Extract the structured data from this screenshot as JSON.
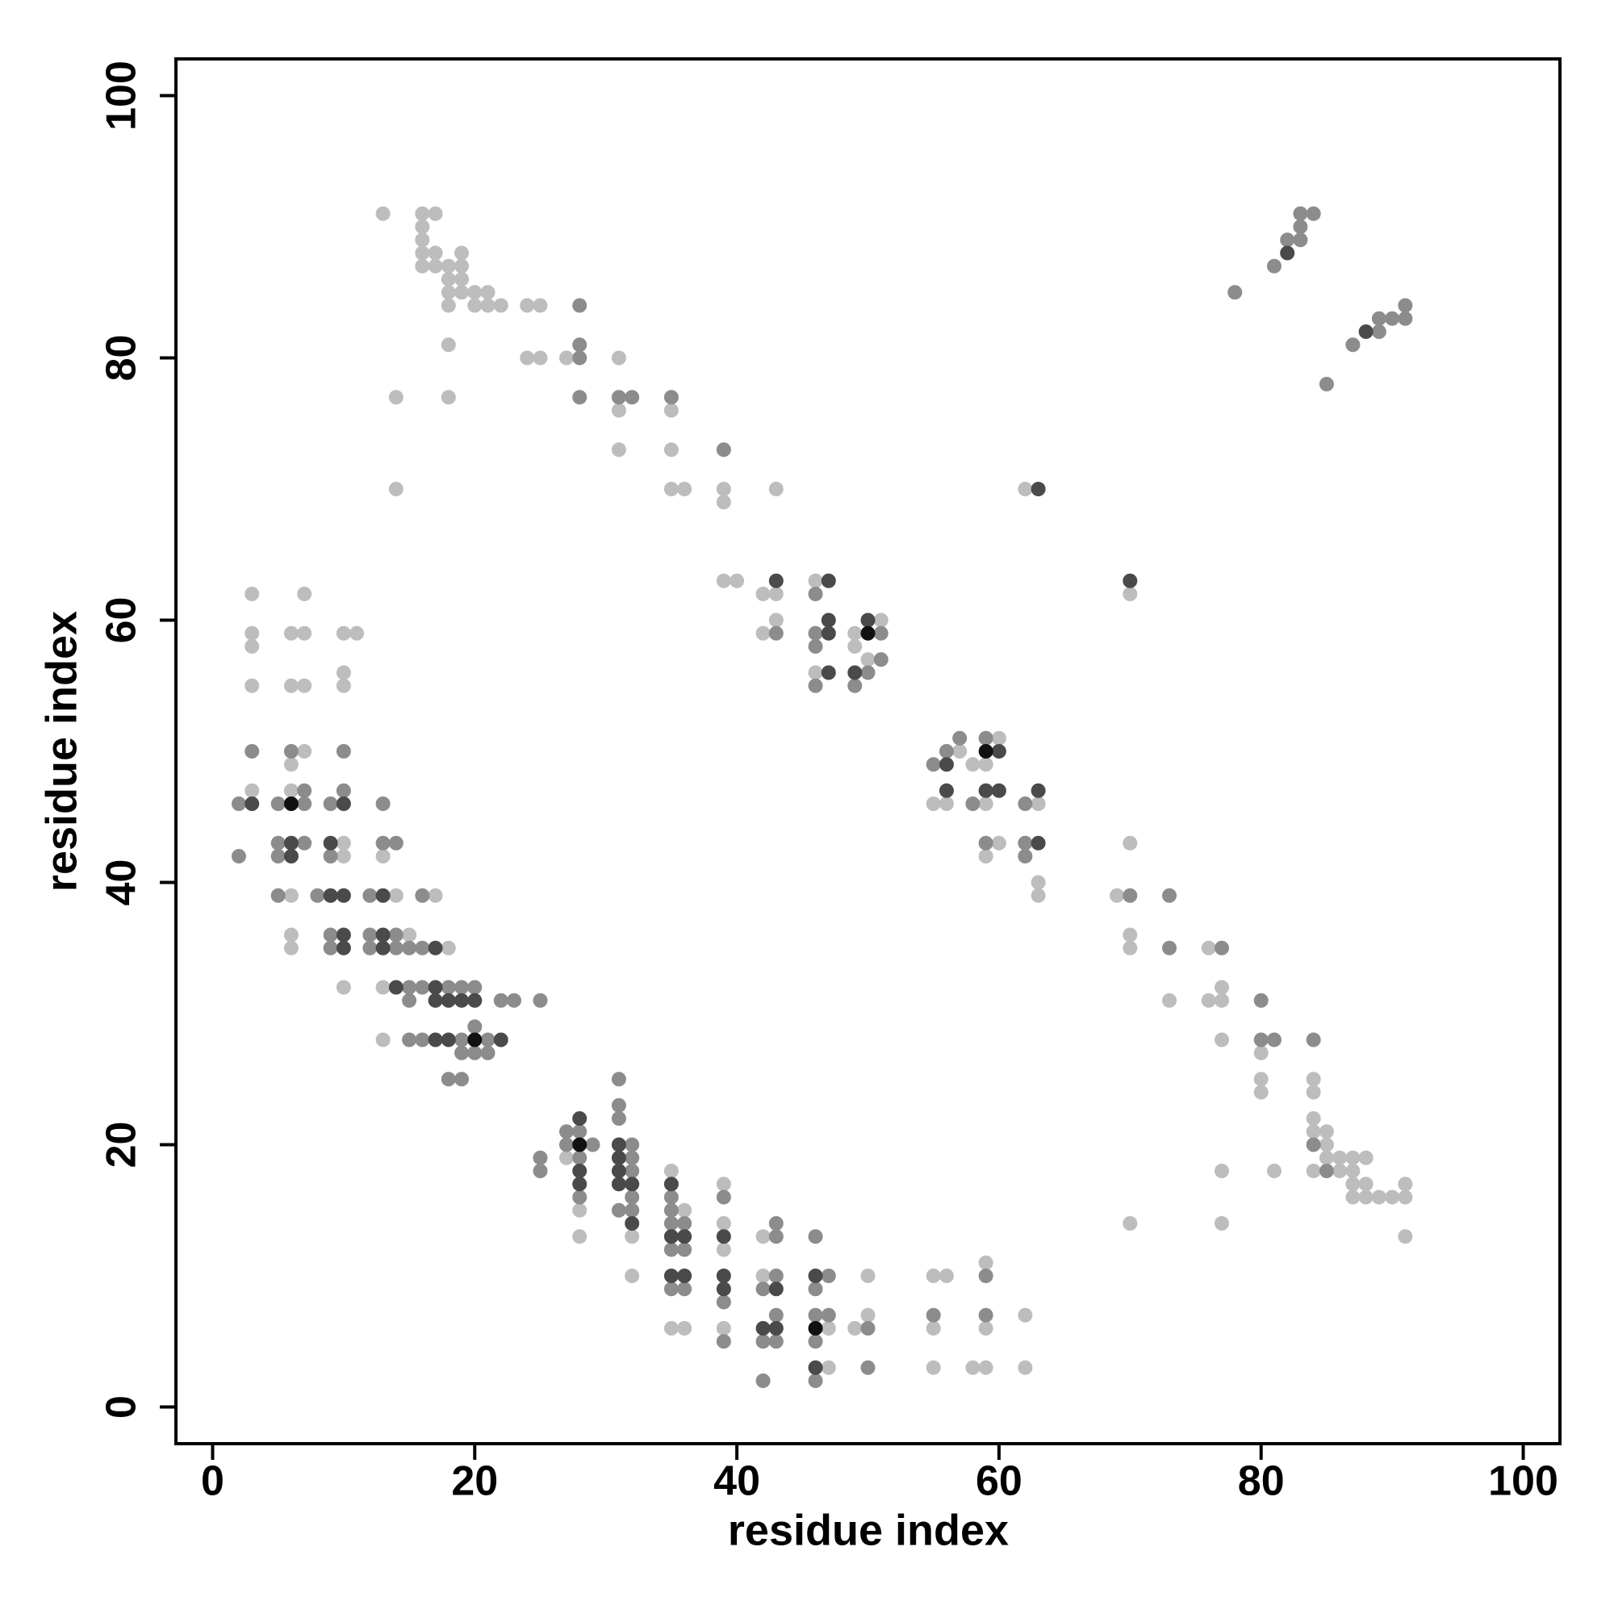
{
  "chart_data": {
    "type": "scatter",
    "xlabel": "residue index",
    "ylabel": "residue index",
    "xlim": [
      -2.8,
      102.8
    ],
    "ylim": [
      -2.8,
      102.8
    ],
    "xticks": [
      0,
      20,
      40,
      60,
      80,
      100
    ],
    "yticks": [
      0,
      20,
      40,
      60,
      80,
      100
    ],
    "series": [
      {
        "color": "#bdbdbd",
        "x": [
          16,
          17,
          13,
          16,
          16,
          16,
          17,
          16,
          17,
          18,
          19,
          19,
          18,
          19,
          18,
          19,
          20,
          21,
          18,
          20,
          21,
          22,
          24,
          25,
          18,
          14,
          18,
          14,
          24,
          25,
          27,
          31,
          31,
          31,
          35,
          35,
          35,
          36,
          39,
          39,
          43,
          39,
          40,
          42,
          43,
          43,
          42,
          46,
          46,
          49,
          51,
          49,
          50,
          62,
          70,
          57,
          58,
          60,
          59,
          55,
          56,
          59,
          63,
          60,
          59,
          63,
          63,
          69,
          70,
          70,
          70,
          76,
          73,
          76,
          77,
          77,
          77,
          80,
          80,
          80,
          84,
          84,
          84,
          84,
          85,
          85,
          85,
          86,
          87,
          88,
          84,
          86,
          87,
          87,
          88,
          91,
          87,
          88,
          89,
          90,
          91,
          91,
          77,
          81,
          70,
          77,
          3,
          7,
          3,
          6,
          7,
          10,
          11,
          3,
          10,
          3,
          6,
          7,
          10,
          7,
          6,
          3,
          6,
          10,
          10,
          13,
          6,
          14,
          17,
          6,
          6,
          15,
          18,
          10,
          13,
          13,
          27,
          28,
          28,
          32,
          32,
          35,
          36,
          35,
          36,
          39,
          39,
          39,
          39,
          42,
          42,
          47,
          47,
          50,
          50,
          49,
          55,
          56,
          55,
          55,
          59,
          59,
          58,
          59,
          62,
          62
        ],
        "y": [
          91,
          91,
          91,
          90,
          89,
          88,
          88,
          87,
          87,
          87,
          88,
          87,
          86,
          86,
          85,
          85,
          85,
          85,
          84,
          84,
          84,
          84,
          84,
          84,
          81,
          77,
          77,
          70,
          80,
          80,
          80,
          80,
          76,
          73,
          76,
          73,
          70,
          70,
          70,
          69,
          70,
          63,
          63,
          62,
          62,
          60,
          59,
          63,
          56,
          59,
          60,
          58,
          57,
          70,
          62,
          50,
          49,
          51,
          49,
          46,
          46,
          46,
          46,
          43,
          42,
          40,
          39,
          39,
          43,
          36,
          35,
          35,
          31,
          31,
          31,
          32,
          28,
          27,
          25,
          24,
          25,
          24,
          22,
          21,
          21,
          20,
          19,
          19,
          19,
          19,
          18,
          18,
          18,
          17,
          17,
          17,
          16,
          16,
          16,
          16,
          16,
          13,
          18,
          18,
          14,
          14,
          62,
          62,
          59,
          59,
          59,
          59,
          59,
          58,
          56,
          55,
          55,
          55,
          55,
          50,
          49,
          47,
          47,
          43,
          42,
          42,
          39,
          39,
          39,
          36,
          35,
          36,
          35,
          32,
          32,
          28,
          19,
          15,
          13,
          13,
          10,
          18,
          15,
          6,
          6,
          17,
          14,
          12,
          6,
          13,
          10,
          6,
          3,
          10,
          7,
          6,
          10,
          10,
          6,
          3,
          11,
          6,
          3,
          3,
          7,
          3
        ]
      },
      {
        "color": "#8c8c8c",
        "x": [
          28,
          28,
          28,
          28,
          31,
          32,
          35,
          39,
          43,
          46,
          46,
          46,
          51,
          50,
          49,
          46,
          51,
          55,
          56,
          57,
          59,
          58,
          62,
          59,
          62,
          62,
          70,
          73,
          73,
          77,
          80,
          80,
          81,
          84,
          84,
          85,
          78,
          81,
          82,
          83,
          83,
          83,
          84,
          85,
          87,
          89,
          89,
          90,
          91,
          91,
          3,
          6,
          10,
          7,
          10,
          2,
          5,
          7,
          9,
          13,
          2,
          5,
          7,
          5,
          9,
          13,
          14,
          5,
          8,
          12,
          16,
          9,
          9,
          12,
          14,
          12,
          14,
          15,
          16,
          15,
          16,
          18,
          19,
          20,
          15,
          22,
          23,
          25,
          15,
          16,
          19,
          21,
          20,
          19,
          20,
          21,
          18,
          19,
          25,
          25,
          27,
          28,
          27,
          29,
          28,
          28,
          31,
          31,
          31,
          32,
          32,
          32,
          32,
          31,
          32,
          35,
          35,
          35,
          36,
          35,
          36,
          35,
          36,
          39,
          39,
          39,
          43,
          43,
          43,
          42,
          43,
          42,
          43,
          42,
          46,
          47,
          46,
          46,
          47,
          46,
          46,
          50,
          50,
          55,
          59,
          59
        ],
        "y": [
          84,
          81,
          80,
          77,
          77,
          77,
          77,
          73,
          59,
          62,
          59,
          58,
          59,
          56,
          55,
          55,
          57,
          49,
          50,
          51,
          51,
          46,
          46,
          43,
          43,
          42,
          39,
          39,
          35,
          35,
          31,
          28,
          28,
          28,
          20,
          18,
          85,
          87,
          89,
          89,
          90,
          91,
          91,
          78,
          81,
          82,
          83,
          83,
          83,
          84,
          50,
          50,
          50,
          47,
          47,
          46,
          46,
          46,
          46,
          46,
          42,
          43,
          43,
          42,
          42,
          43,
          43,
          39,
          39,
          39,
          39,
          36,
          35,
          36,
          36,
          35,
          35,
          35,
          35,
          32,
          32,
          32,
          32,
          32,
          31,
          31,
          31,
          31,
          28,
          28,
          28,
          28,
          29,
          27,
          27,
          27,
          25,
          25,
          19,
          18,
          21,
          21,
          20,
          20,
          19,
          16,
          25,
          23,
          22,
          20,
          19,
          18,
          16,
          15,
          15,
          16,
          15,
          14,
          14,
          12,
          12,
          9,
          9,
          16,
          8,
          5,
          14,
          13,
          10,
          9,
          7,
          5,
          5,
          2,
          13,
          10,
          9,
          7,
          7,
          5,
          2,
          6,
          3,
          7,
          10,
          7
        ]
      },
      {
        "color": "#4a4a4a",
        "x": [
          43,
          47,
          47,
          47,
          47,
          50,
          49,
          63,
          70,
          56,
          60,
          56,
          59,
          60,
          63,
          63,
          82,
          88,
          3,
          10,
          6,
          9,
          6,
          9,
          10,
          13,
          10,
          10,
          13,
          13,
          17,
          14,
          17,
          17,
          18,
          19,
          20,
          17,
          18,
          22,
          28,
          28,
          28,
          31,
          31,
          31,
          31,
          32,
          32,
          35,
          35,
          36,
          35,
          36,
          39,
          39,
          39,
          43,
          42,
          43,
          46,
          46
        ],
        "y": [
          63,
          63,
          59,
          60,
          56,
          60,
          56,
          70,
          63,
          49,
          50,
          47,
          47,
          47,
          47,
          43,
          88,
          82,
          46,
          46,
          43,
          43,
          42,
          39,
          39,
          39,
          36,
          35,
          36,
          35,
          35,
          32,
          32,
          31,
          31,
          31,
          31,
          28,
          28,
          28,
          22,
          18,
          17,
          20,
          19,
          18,
          17,
          17,
          14,
          17,
          13,
          13,
          10,
          10,
          13,
          10,
          9,
          9,
          6,
          6,
          10,
          3
        ]
      },
      {
        "color": "#111111",
        "x": [
          50,
          59,
          6,
          20,
          28,
          46
        ],
        "y": [
          59,
          50,
          46,
          28,
          20,
          6
        ]
      }
    ]
  }
}
